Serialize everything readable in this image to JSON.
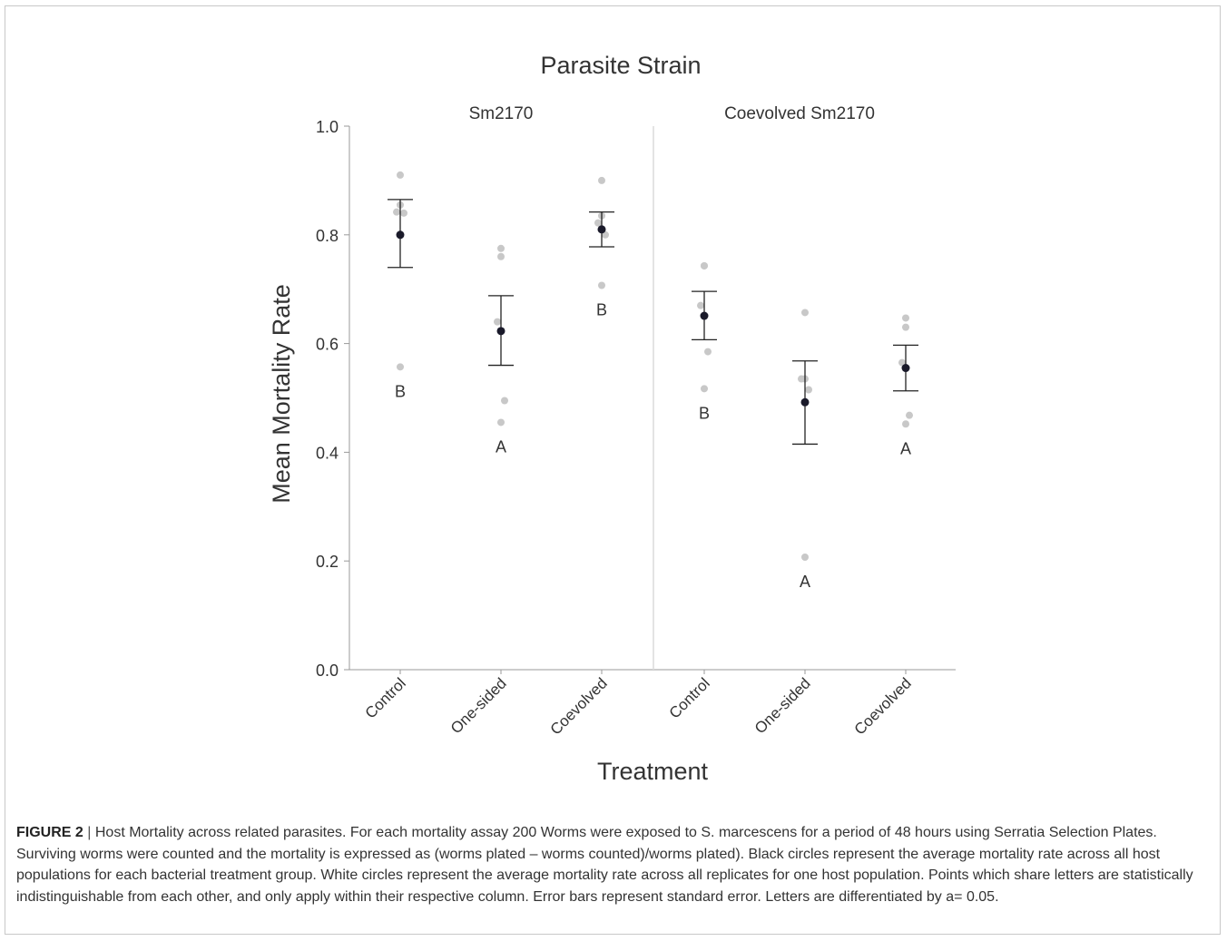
{
  "chart_data": {
    "type": "scatter",
    "title": "Parasite Strain",
    "xlabel": "Treatment",
    "ylabel": "Mean Mortality Rate",
    "ylim": [
      0,
      1
    ],
    "yticks": [
      "0.0",
      "0.2",
      "0.4",
      "0.6",
      "0.8",
      "1.0"
    ],
    "grid": false,
    "panels": [
      {
        "label": "Sm2170",
        "groups": [
          {
            "category": "Control",
            "mean": 0.8,
            "se_low": 0.74,
            "se_high": 0.865,
            "letter": "B",
            "points": [
              0.91,
              0.855,
              0.842,
              0.84,
              0.557
            ]
          },
          {
            "category": "One-sided",
            "mean": 0.623,
            "se_low": 0.56,
            "se_high": 0.688,
            "letter": "A",
            "points": [
              0.775,
              0.76,
              0.64,
              0.495,
              0.455
            ]
          },
          {
            "category": "Coevolved",
            "mean": 0.81,
            "se_low": 0.778,
            "se_high": 0.842,
            "letter": "B",
            "points": [
              0.9,
              0.835,
              0.822,
              0.8,
              0.707
            ]
          }
        ]
      },
      {
        "label": "Coevolved Sm2170",
        "groups": [
          {
            "category": "Control",
            "mean": 0.651,
            "se_low": 0.607,
            "se_high": 0.696,
            "letter": "B",
            "points": [
              0.743,
              0.743,
              0.67,
              0.585,
              0.517
            ]
          },
          {
            "category": "One-sided",
            "mean": 0.492,
            "se_low": 0.415,
            "se_high": 0.568,
            "letter": "A",
            "points": [
              0.657,
              0.535,
              0.535,
              0.515,
              0.207
            ]
          },
          {
            "category": "Coevolved",
            "mean": 0.555,
            "se_low": 0.513,
            "se_high": 0.597,
            "letter": "A",
            "points": [
              0.647,
              0.63,
              0.565,
              0.468,
              0.452
            ]
          }
        ]
      }
    ]
  },
  "caption": {
    "label": "FIGURE 2",
    "separator": "|",
    "text": "Host Mortality across related parasites. For each mortality assay 200 Worms were exposed to S. marcescens for a period of 48 hours using Serratia Selection Plates. Surviving worms were counted and the mortality is expressed as (worms plated – worms counted)/worms plated). Black circles represent the average mortality rate across all host populations for each bacterial treatment group. White circles represent the average mortality rate across all replicates for one host population. Points which share letters are statistically indistinguishable from each other, and only apply within their respective column. Error bars represent standard error. Letters are differentiated by a= 0.05."
  },
  "colors": {
    "mean_point": "#1a1a2a",
    "replicate_point": "#c8c8c8",
    "axis": "#9a9a9a",
    "divider": "#dcdcdc",
    "text": "#333333"
  }
}
